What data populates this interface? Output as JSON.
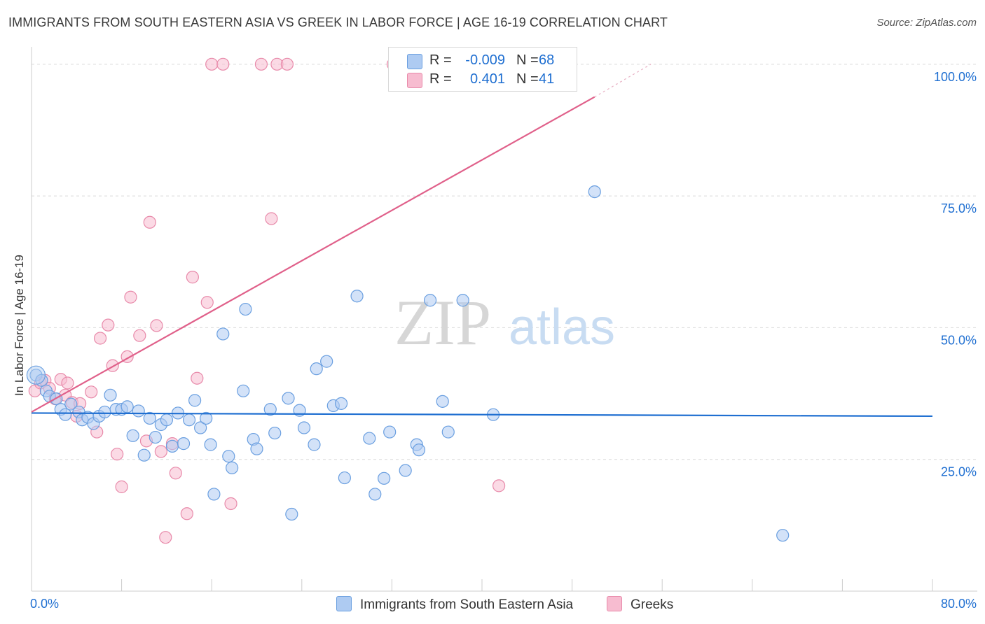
{
  "header": {
    "title": "IMMIGRANTS FROM SOUTH EASTERN ASIA VS GREEK IN LABOR FORCE | AGE 16-19 CORRELATION CHART",
    "source": "Source: ZipAtlas.com"
  },
  "legend": {
    "rows": [
      {
        "r_label": "R =",
        "r_value": "-0.009",
        "n_label": "N =",
        "n_value": "68"
      },
      {
        "r_label": "R =",
        "r_value": "0.401",
        "n_label": "N =",
        "n_value": "41"
      }
    ]
  },
  "bottom_legend": {
    "series_a": "Immigrants from South Eastern Asia",
    "series_b": "Greeks"
  },
  "watermark": {
    "zip": "ZIP",
    "atlas": "atlas"
  },
  "colors": {
    "blue_fill": "#aecbf2",
    "blue_stroke": "#6a9fe0",
    "blue_line": "#1f6fd1",
    "pink_fill": "#f7bcd0",
    "pink_stroke": "#e88aaa",
    "pink_line": "#e0608a",
    "axis_label": "#1f6fd1",
    "grid": "#d9d9d9"
  },
  "chart_data": {
    "type": "scatter",
    "title": "IMMIGRANTS FROM SOUTH EASTERN ASIA VS GREEK IN LABOR FORCE | AGE 16-19 CORRELATION CHART",
    "xlabel": "",
    "ylabel": "In Labor Force | Age 16-19",
    "xlim": [
      0,
      80
    ],
    "ylim": [
      0,
      102.5
    ],
    "x_tick_labels": [
      {
        "value": 0,
        "label": "0.0%"
      },
      {
        "value": 80,
        "label": "80.0%"
      }
    ],
    "y_tick_labels": [
      {
        "value": 25,
        "label": "25.0%"
      },
      {
        "value": 50,
        "label": "50.0%"
      },
      {
        "value": 75,
        "label": "75.0%"
      },
      {
        "value": 100,
        "label": "100.0%"
      }
    ],
    "series": [
      {
        "name": "Immigrants from South Eastern Asia",
        "r": -0.009,
        "n": 68,
        "trend": {
          "x0": 0,
          "y0": 33.8,
          "x1": 80,
          "y1": 33.2
        },
        "points": [
          [
            0.4,
            41.0
          ],
          [
            0.9,
            40.0
          ],
          [
            1.3,
            38.0
          ],
          [
            1.6,
            37.0
          ],
          [
            2.2,
            36.5
          ],
          [
            2.6,
            34.5
          ],
          [
            3.0,
            33.5
          ],
          [
            3.5,
            35.5
          ],
          [
            4.2,
            34.0
          ],
          [
            4.5,
            32.5
          ],
          [
            5.0,
            33.0
          ],
          [
            5.5,
            31.8
          ],
          [
            6.0,
            33.2
          ],
          [
            6.5,
            34.0
          ],
          [
            7.0,
            37.2
          ],
          [
            7.5,
            34.5
          ],
          [
            8.0,
            34.5
          ],
          [
            8.5,
            35.0
          ],
          [
            9.0,
            29.5
          ],
          [
            9.5,
            34.2
          ],
          [
            10.0,
            25.8
          ],
          [
            10.5,
            32.8
          ],
          [
            11.0,
            29.2
          ],
          [
            11.5,
            31.6
          ],
          [
            12.0,
            32.5
          ],
          [
            12.5,
            27.5
          ],
          [
            13.0,
            33.8
          ],
          [
            13.5,
            28.0
          ],
          [
            14.0,
            32.5
          ],
          [
            14.5,
            36.2
          ],
          [
            15.0,
            31.0
          ],
          [
            15.5,
            32.8
          ],
          [
            15.9,
            27.8
          ],
          [
            16.2,
            18.4
          ],
          [
            17.0,
            48.8
          ],
          [
            17.5,
            25.6
          ],
          [
            17.8,
            23.4
          ],
          [
            18.8,
            38.0
          ],
          [
            19.0,
            53.5
          ],
          [
            19.7,
            28.8
          ],
          [
            20.0,
            27.0
          ],
          [
            21.2,
            34.5
          ],
          [
            21.6,
            30.0
          ],
          [
            22.8,
            36.6
          ],
          [
            23.1,
            14.6
          ],
          [
            23.8,
            34.3
          ],
          [
            24.2,
            31.0
          ],
          [
            25.1,
            27.8
          ],
          [
            25.3,
            42.2
          ],
          [
            26.2,
            43.6
          ],
          [
            26.8,
            35.2
          ],
          [
            27.5,
            35.6
          ],
          [
            27.8,
            21.5
          ],
          [
            28.9,
            56.0
          ],
          [
            30.0,
            29.0
          ],
          [
            30.5,
            18.4
          ],
          [
            31.3,
            21.4
          ],
          [
            31.8,
            30.2
          ],
          [
            33.2,
            22.9
          ],
          [
            34.2,
            27.8
          ],
          [
            34.4,
            26.8
          ],
          [
            35.4,
            55.2
          ],
          [
            36.5,
            36.0
          ],
          [
            37.0,
            30.2
          ],
          [
            38.3,
            55.2
          ],
          [
            41.0,
            33.5
          ],
          [
            50.0,
            75.8
          ],
          [
            66.7,
            10.6
          ]
        ]
      },
      {
        "name": "Greeks",
        "r": 0.401,
        "n": 41,
        "trend": {
          "x0": 0,
          "y0": 34.0,
          "x1": 50.0,
          "y1": 93.8
        },
        "trend_dashed_to": {
          "x": 55.0,
          "y": 100.0
        },
        "points": [
          [
            0.3,
            38.0
          ],
          [
            0.8,
            39.5
          ],
          [
            1.2,
            40.0
          ],
          [
            1.6,
            38.5
          ],
          [
            2.1,
            36.5
          ],
          [
            2.6,
            40.2
          ],
          [
            3.0,
            37.2
          ],
          [
            3.2,
            39.5
          ],
          [
            3.6,
            35.8
          ],
          [
            4.0,
            33.2
          ],
          [
            4.3,
            35.6
          ],
          [
            5.3,
            37.8
          ],
          [
            5.8,
            30.2
          ],
          [
            6.1,
            48.0
          ],
          [
            6.8,
            50.5
          ],
          [
            7.2,
            42.8
          ],
          [
            7.6,
            26.0
          ],
          [
            8.0,
            19.8
          ],
          [
            8.5,
            44.5
          ],
          [
            8.8,
            55.8
          ],
          [
            9.6,
            48.5
          ],
          [
            10.2,
            28.5
          ],
          [
            10.5,
            70.0
          ],
          [
            11.1,
            50.4
          ],
          [
            11.5,
            26.5
          ],
          [
            11.9,
            10.2
          ],
          [
            12.5,
            28.0
          ],
          [
            12.8,
            22.4
          ],
          [
            13.8,
            14.7
          ],
          [
            14.3,
            59.6
          ],
          [
            14.7,
            40.4
          ],
          [
            15.6,
            54.8
          ],
          [
            16.0,
            100.0
          ],
          [
            17.0,
            100.0
          ],
          [
            17.7,
            16.6
          ],
          [
            20.4,
            100.0
          ],
          [
            21.3,
            70.7
          ],
          [
            21.8,
            100.0
          ],
          [
            22.7,
            100.0
          ],
          [
            32.1,
            100.0
          ],
          [
            41.5,
            20.0
          ]
        ]
      }
    ]
  }
}
